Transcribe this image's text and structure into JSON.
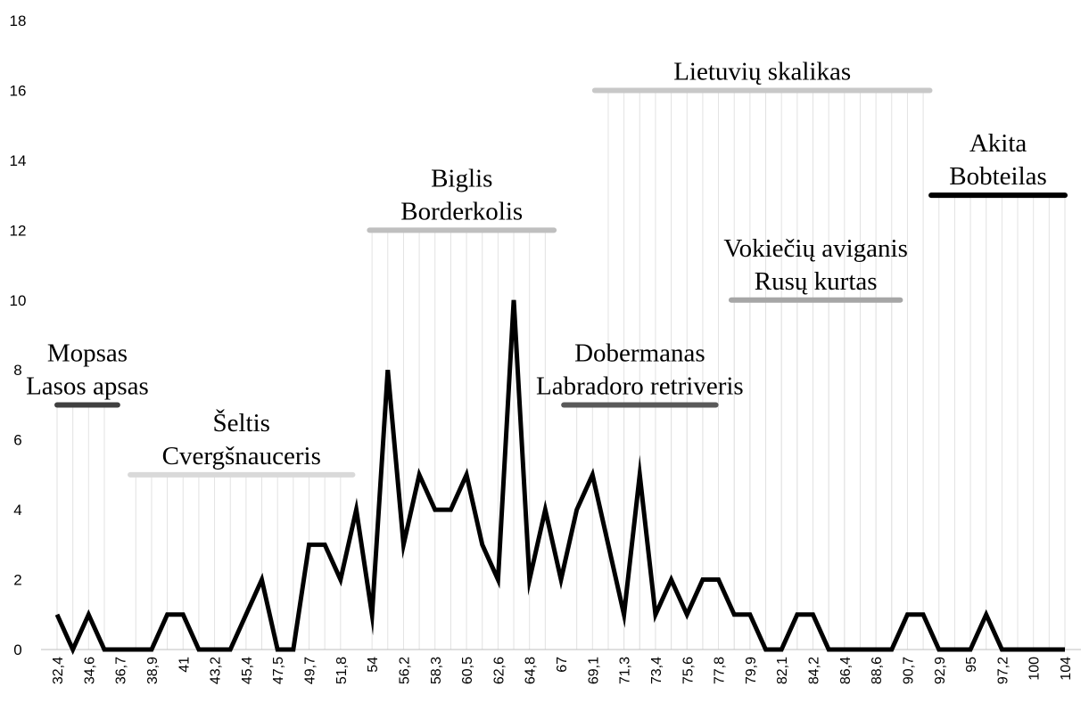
{
  "chart_data": {
    "type": "line",
    "title": "",
    "xlabel": "",
    "ylabel": "",
    "ylim": [
      0,
      18
    ],
    "yticks": [
      0,
      2,
      4,
      6,
      8,
      10,
      12,
      14,
      16,
      18
    ],
    "grid": "vertical lines only under the breed range bars",
    "x_tick_labels": [
      "32,4",
      "34,6",
      "36,7",
      "38,9",
      "41",
      "43,2",
      "45,4",
      "47,5",
      "49,7",
      "51,8",
      "54",
      "56,2",
      "58,3",
      "60,5",
      "62,6",
      "64,8",
      "67",
      "69,1",
      "71,3",
      "73,4",
      "75,6",
      "77,8",
      "79,9",
      "82,1",
      "84,2",
      "86,4",
      "88,6",
      "90,7",
      "92,9",
      "95",
      "97,2",
      "100",
      "104"
    ],
    "series": [
      {
        "color": "#000000",
        "values": [
          1,
          0,
          1,
          0,
          0,
          0,
          0,
          1,
          1,
          0,
          0,
          0,
          1,
          2,
          0,
          0,
          3,
          3,
          2,
          4,
          1,
          8,
          3,
          5,
          4,
          4,
          5,
          3,
          2,
          10,
          2,
          4,
          2,
          4,
          5,
          3,
          1,
          5,
          1,
          2,
          1,
          2,
          2,
          1,
          1,
          0,
          0,
          1,
          1,
          0,
          0,
          0,
          0,
          0,
          1,
          1,
          0,
          0,
          0,
          1,
          0,
          0,
          0,
          0,
          0
        ]
      }
    ],
    "ranges": [
      {
        "names": [
          "Mopsas",
          "Lasos apsas"
        ],
        "y": 7,
        "x_start": 32.4,
        "x_end": 36.7,
        "color": "#404040"
      },
      {
        "names": [
          "Šeltis",
          "Cvergšnauceris"
        ],
        "y": 5,
        "x_start": 37.6,
        "x_end": 53.4,
        "color": "#d9d9d9"
      },
      {
        "names": [
          "Biglis",
          "Borderkolis"
        ],
        "y": 12,
        "x_start": 54.6,
        "x_end": 67.7,
        "color": "#bfbfbf"
      },
      {
        "names": [
          "Dobermanas",
          "Labradoro retriveris"
        ],
        "y": 7,
        "x_start": 68.4,
        "x_end": 79.2,
        "color": "#595959"
      },
      {
        "names": [
          "Lietuvių skalikas"
        ],
        "y": 16,
        "x_start": 70.6,
        "x_end": 94.4,
        "color": "#c8c8c8"
      },
      {
        "names": [
          "Vokiečių aviganis",
          "Rusų kurtas"
        ],
        "y": 10,
        "x_start": 80.3,
        "x_end": 92.3,
        "color": "#a6a6a6"
      },
      {
        "names": [
          "Akita",
          "Bobteilas"
        ],
        "y": 13,
        "x_start": 94.5,
        "x_end": 104,
        "color": "#000000"
      }
    ]
  }
}
